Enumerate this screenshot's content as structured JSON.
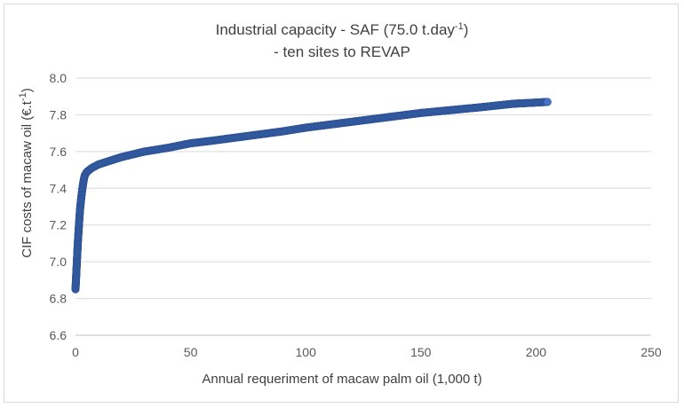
{
  "chart_data": {
    "type": "scatter",
    "title_line1": "Industrial capacity - SAF (75.0 t.day",
    "title_line1_sup": "-1",
    "title_line1_end": ")",
    "title_line2": "- ten sites to REVAP",
    "xlabel": "Annual requeriment of macaw palm oil (1,000 t)",
    "ylabel_main": "CIF costs of macaw oil (€.t",
    "ylabel_sup": "-1",
    "ylabel_end": ")",
    "xlim": [
      0,
      250
    ],
    "ylim": [
      6.6,
      8.0
    ],
    "x_ticks": [
      "0",
      "50",
      "100",
      "150",
      "200",
      "250"
    ],
    "y_ticks": [
      "6.6",
      "6.8",
      "7.0",
      "7.2",
      "7.4",
      "7.6",
      "7.8",
      "8.0"
    ],
    "grid": true,
    "marker_color": "#4472c4",
    "curve": {
      "x": [
        0,
        0.2,
        0.4,
        0.6,
        0.8,
        1.0,
        1.3,
        1.6,
        2.0,
        2.5,
        3.0,
        3.5,
        4.0,
        5,
        7,
        10,
        15,
        20,
        30,
        40,
        50,
        60,
        75,
        90,
        100,
        125,
        150,
        175,
        190,
        205
      ],
      "y": [
        6.85,
        6.9,
        6.95,
        7.0,
        7.05,
        7.1,
        7.16,
        7.22,
        7.29,
        7.35,
        7.4,
        7.44,
        7.47,
        7.49,
        7.51,
        7.53,
        7.55,
        7.57,
        7.6,
        7.62,
        7.645,
        7.66,
        7.685,
        7.71,
        7.73,
        7.77,
        7.81,
        7.84,
        7.86,
        7.87
      ]
    }
  }
}
